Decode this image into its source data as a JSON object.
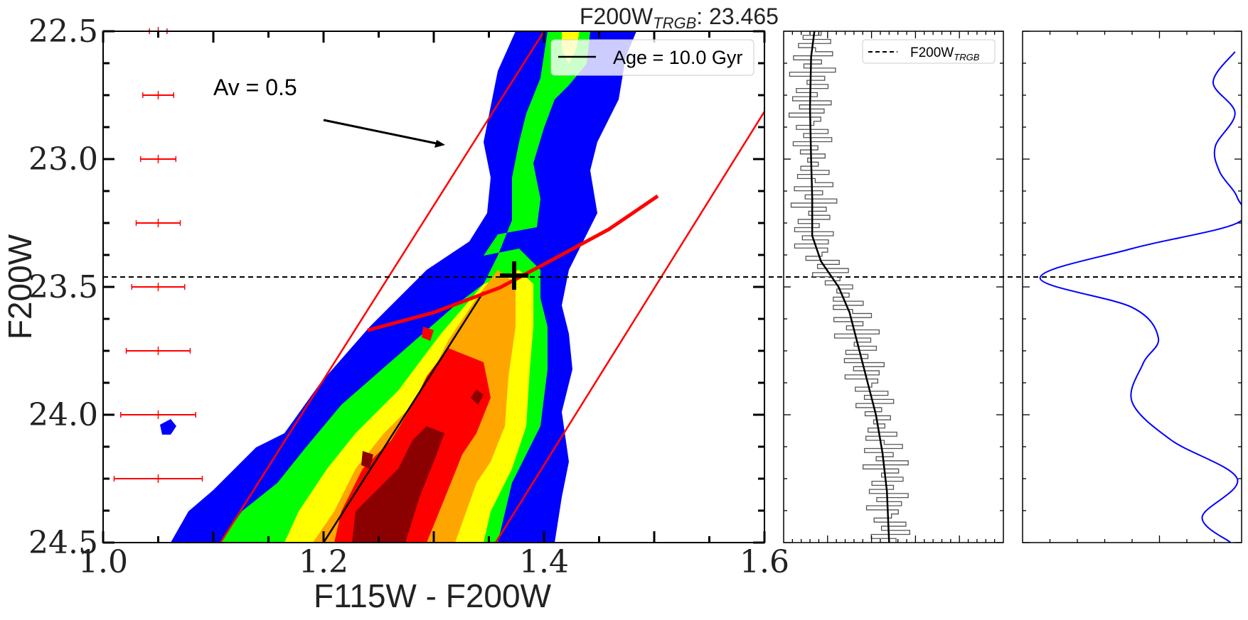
{
  "title": {
    "base": "F200W",
    "sub": "TRGB",
    "value": ": 23.465"
  },
  "cmd": {
    "xlabel": "F115W - F200W",
    "ylabel": "F200W",
    "xlim": [
      1.0,
      1.6
    ],
    "ylim": [
      24.5,
      22.5
    ],
    "xticks": [
      {
        "v": 1.0,
        "t": "1.0"
      },
      {
        "v": 1.2,
        "t": "1.2"
      },
      {
        "v": 1.4,
        "t": "1.4"
      },
      {
        "v": 1.6,
        "t": "1.6"
      }
    ],
    "yticks": [
      {
        "v": 22.5,
        "t": "22.5"
      },
      {
        "v": 23.0,
        "t": "23.0"
      },
      {
        "v": 23.5,
        "t": "23.5"
      },
      {
        "v": 24.0,
        "t": "24.0"
      },
      {
        "v": 24.5,
        "t": "24.5"
      }
    ],
    "annotation": "Av = 0.5",
    "legend": "Age = 10.0 Gyr",
    "trgb_mag": 23.465
  },
  "histogram_panel": {
    "legend_base": "F200W",
    "legend_sub": "TRGB"
  },
  "chart_data": [
    {
      "type": "heatmap",
      "xlabel": "F115W - F200W",
      "ylabel": "F200W",
      "xlim": [
        1.0,
        1.6
      ],
      "ylim": [
        24.5,
        22.5
      ],
      "contour_colors": [
        "#0000ff",
        "#00ff00",
        "#ffff00",
        "#ffa500",
        "#ff0000",
        "#8b0000"
      ],
      "isochrone": {
        "name": "Age = 10.0 Gyr",
        "points": [
          [
            1.2,
            24.5
          ],
          [
            1.345,
            23.52
          ]
        ]
      },
      "selection_box_left": [
        [
          1.105,
          24.5
        ],
        [
          1.4,
          22.5
        ]
      ],
      "selection_box_right": [
        [
          1.36,
          24.5
        ],
        [
          1.6,
          22.82
        ]
      ],
      "trgb_fit_curve": [
        [
          1.24,
          23.67
        ],
        [
          1.3,
          23.6
        ],
        [
          1.36,
          23.5
        ],
        [
          1.41,
          23.39
        ],
        [
          1.46,
          23.28
        ],
        [
          1.505,
          23.15
        ]
      ],
      "trgb_line": 23.465,
      "trgb_marker": {
        "x": 1.373,
        "y": 23.458
      },
      "error_bars": [
        {
          "y": 22.5,
          "xerr": 0.008
        },
        {
          "y": 22.75,
          "xerr": 0.014
        },
        {
          "y": 23.0,
          "xerr": 0.016
        },
        {
          "y": 23.25,
          "xerr": 0.02
        },
        {
          "y": 23.5,
          "xerr": 0.024
        },
        {
          "y": 23.75,
          "xerr": 0.029
        },
        {
          "y": 24.0,
          "xerr": 0.034
        },
        {
          "y": 24.25,
          "xerr": 0.04
        }
      ],
      "error_bar_x": 1.05,
      "reddening_vector": {
        "from": [
          1.2,
          22.84
        ],
        "to": [
          1.31,
          22.94
        ]
      }
    },
    {
      "type": "line",
      "ylim": [
        24.5,
        22.5
      ],
      "smoothed_luminosity_function": [
        [
          22.5,
          0.14
        ],
        [
          22.6,
          0.125
        ],
        [
          22.8,
          0.12
        ],
        [
          23.0,
          0.125
        ],
        [
          23.15,
          0.13
        ],
        [
          23.3,
          0.13
        ],
        [
          23.4,
          0.17
        ],
        [
          23.5,
          0.25
        ],
        [
          23.6,
          0.3
        ],
        [
          23.8,
          0.36
        ],
        [
          24.0,
          0.42
        ],
        [
          24.15,
          0.45
        ],
        [
          24.3,
          0.47
        ],
        [
          24.5,
          0.48
        ]
      ],
      "trgb_line": 23.465
    },
    {
      "type": "line",
      "ylim": [
        24.5,
        22.5
      ],
      "edge_detection_response": [
        [
          22.58,
          0.97
        ],
        [
          22.7,
          0.87
        ],
        [
          22.82,
          0.97
        ],
        [
          22.95,
          0.88
        ],
        [
          23.05,
          0.9
        ],
        [
          23.15,
          0.98
        ],
        [
          23.25,
          0.98
        ],
        [
          23.35,
          0.5
        ],
        [
          23.465,
          0.08
        ],
        [
          23.58,
          0.5
        ],
        [
          23.7,
          0.62
        ],
        [
          23.8,
          0.55
        ],
        [
          23.95,
          0.5
        ],
        [
          24.1,
          0.68
        ],
        [
          24.25,
          0.98
        ],
        [
          24.4,
          0.82
        ],
        [
          24.5,
          0.95
        ]
      ],
      "trgb_line": 23.465
    }
  ]
}
